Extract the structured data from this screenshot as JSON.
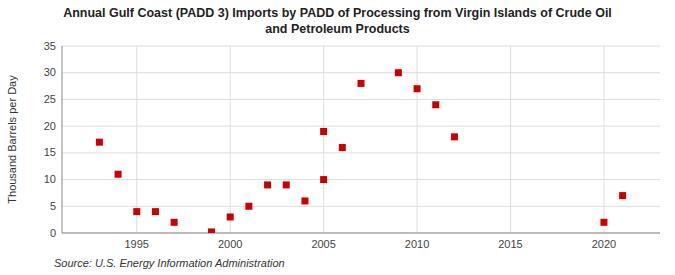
{
  "chart_data": {
    "type": "scatter",
    "title": "Annual Gulf Coast (PADD 3) Imports by PADD of Processing from Virgin Islands of Crude Oil\nand Petroleum Products",
    "y_label": "Thousand Barrels per Day",
    "source": "Source: U.S. Energy Information Administration",
    "x": [
      1993,
      1994,
      1995,
      1996,
      1997,
      1999,
      2000,
      2001,
      2002,
      2003,
      2004,
      2005,
      2005,
      2006,
      2007,
      2009,
      2010,
      2011,
      2012,
      2020,
      2021
    ],
    "values": [
      17.0,
      11.0,
      4.0,
      4.0,
      2.0,
      0.2,
      3.0,
      5.0,
      9.0,
      9.0,
      6.0,
      10.0,
      19.0,
      16.0,
      28.0,
      30.0,
      27.0,
      24.0,
      18.0,
      2.0,
      7.0
    ],
    "color": "#cc0000",
    "marker": "square",
    "xlim": [
      1991,
      2023
    ],
    "ylim": [
      0,
      35
    ],
    "yticks": [
      0,
      5,
      10,
      15,
      20,
      25,
      30,
      35
    ],
    "xticks": [
      1995,
      2000,
      2005,
      2010,
      2015,
      2020
    ],
    "grid": true
  }
}
